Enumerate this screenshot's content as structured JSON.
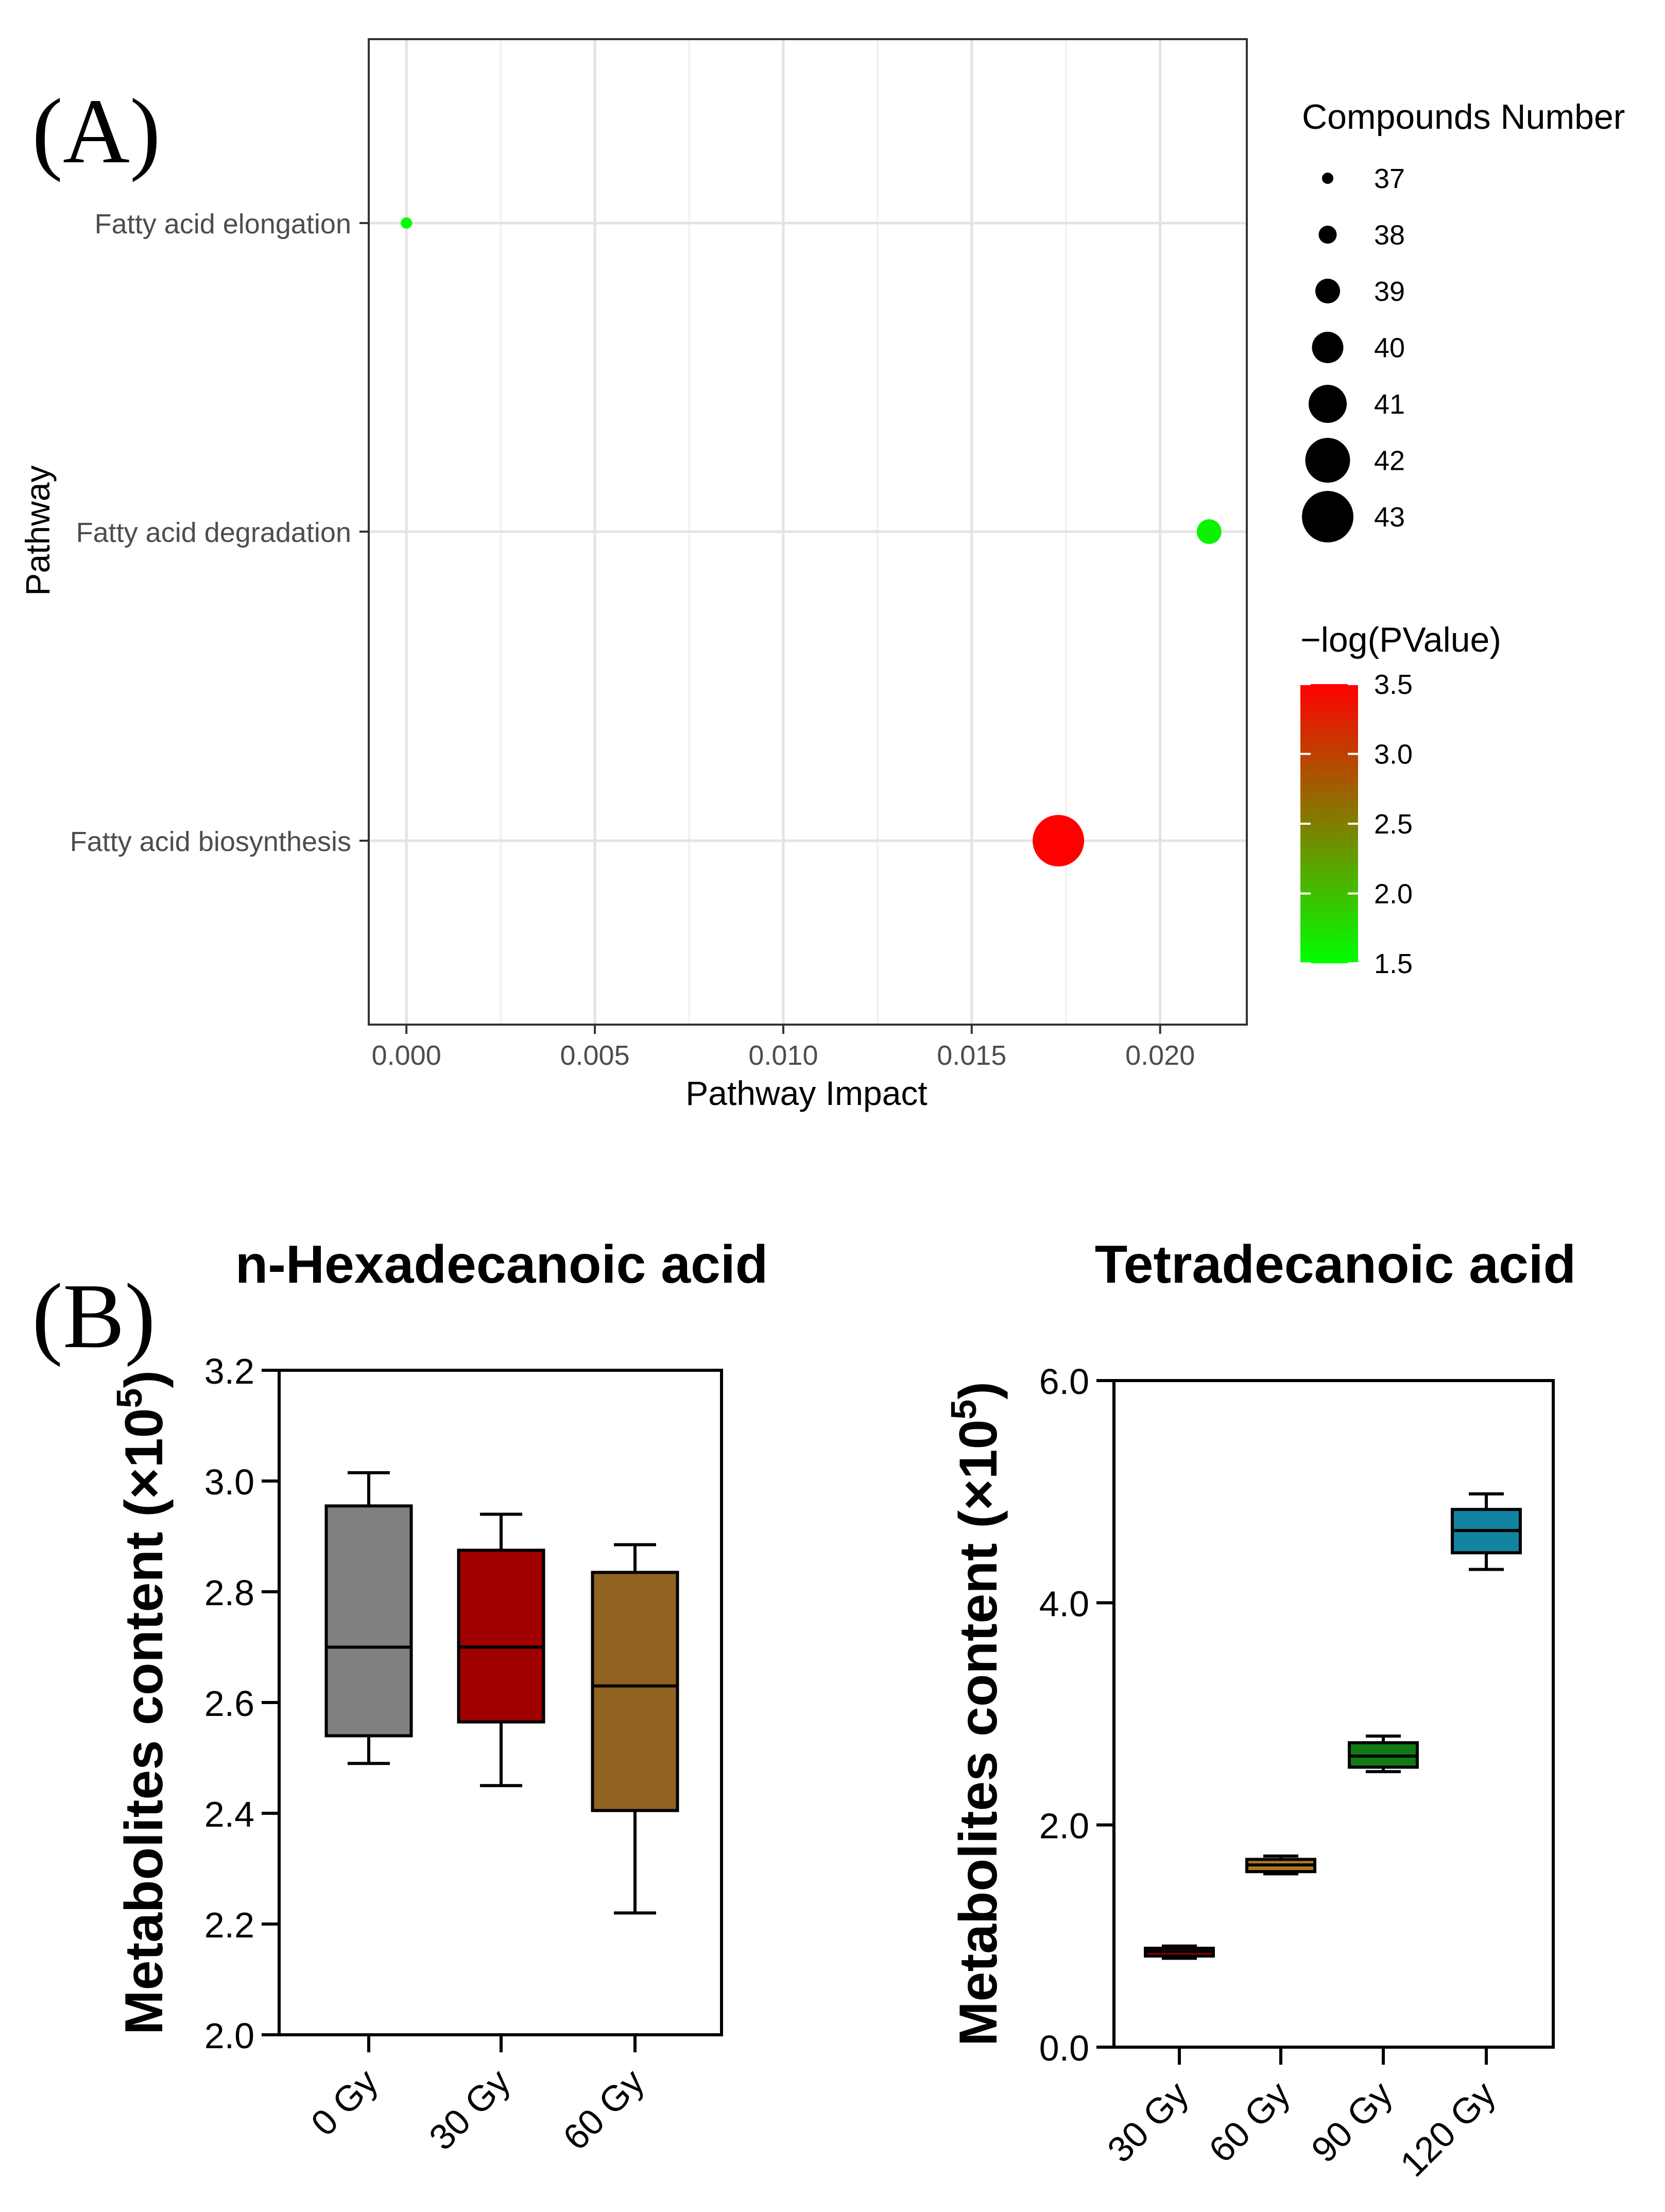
{
  "panels": {
    "a_label": "(A)",
    "b_label": "(B)"
  },
  "chart_data": [
    {
      "type": "scatter",
      "title": "",
      "xlabel": "Pathway Impact",
      "ylabel": "Pathway",
      "xlim": [
        -0.001,
        0.0223
      ],
      "x_ticks": [
        0.0,
        0.005,
        0.01,
        0.015,
        0.02
      ],
      "x_tick_labels": [
        "0.000",
        "0.005",
        "0.010",
        "0.015",
        "0.020"
      ],
      "categories": [
        "Fatty acid elongation",
        "Fatty acid degradation",
        "Fatty acid biosynthesis"
      ],
      "points": [
        {
          "pathway": "Fatty acid elongation",
          "impact": 0.0,
          "compounds": 37,
          "neg_log_p": 1.5
        },
        {
          "pathway": "Fatty acid degradation",
          "impact": 0.0213,
          "compounds": 39,
          "neg_log_p": 1.6
        },
        {
          "pathway": "Fatty acid biosynthesis",
          "impact": 0.0173,
          "compounds": 43,
          "neg_log_p": 3.5
        }
      ],
      "size_legend": {
        "title": "Compounds Number",
        "values": [
          37,
          38,
          39,
          40,
          41,
          42,
          43
        ],
        "labels": [
          "37",
          "38",
          "39",
          "40",
          "41",
          "42",
          "43"
        ]
      },
      "color_legend": {
        "title": "−log(PValue)",
        "range": [
          1.5,
          3.5
        ],
        "ticks": [
          3.5,
          3.0,
          2.5,
          2.0,
          1.5
        ],
        "tick_labels": [
          "3.5",
          "3.0",
          "2.5",
          "2.0",
          "1.5"
        ],
        "low_color": "#00ff00",
        "high_color": "#ff0000"
      },
      "grid": true,
      "legend_position": "right"
    },
    {
      "type": "box",
      "title": "n-Hexadecanoic acid",
      "ylabel": "Metabolites content (×10",
      "ylabel_sup": "5",
      "ylabel_close": ")",
      "ylim": [
        2.0,
        3.2
      ],
      "y_ticks": [
        2.0,
        2.2,
        2.4,
        2.6,
        2.8,
        3.0,
        3.2
      ],
      "y_tick_labels": [
        "2.0",
        "2.2",
        "2.4",
        "2.6",
        "2.8",
        "3.0",
        "3.2"
      ],
      "categories": [
        "0 Gy",
        "30 Gy",
        "60 Gy"
      ],
      "boxes": [
        {
          "min": 2.49,
          "q1": 2.54,
          "median": 2.7,
          "q3": 2.955,
          "max": 3.015,
          "color": "#808080"
        },
        {
          "min": 2.45,
          "q1": 2.565,
          "median": 2.7,
          "q3": 2.875,
          "max": 2.94,
          "color": "#a00000"
        },
        {
          "min": 2.22,
          "q1": 2.405,
          "median": 2.63,
          "q3": 2.835,
          "max": 2.885,
          "color": "#926220"
        }
      ]
    },
    {
      "type": "box",
      "title": "Tetradecanoic acid",
      "ylabel": "Metabolites content (×10",
      "ylabel_sup": "5",
      "ylabel_close": ")",
      "ylim": [
        0.0,
        6.0
      ],
      "y_ticks": [
        0.0,
        2.0,
        4.0,
        6.0
      ],
      "y_tick_labels": [
        "0.0",
        "2.0",
        "4.0",
        "6.0"
      ],
      "categories": [
        "30 Gy",
        "60 Gy",
        "90 Gy",
        "120 Gy"
      ],
      "boxes": [
        {
          "min": 0.8,
          "q1": 0.82,
          "median": 0.86,
          "q3": 0.89,
          "max": 0.91,
          "color": "#a00000"
        },
        {
          "min": 1.56,
          "q1": 1.58,
          "median": 1.64,
          "q3": 1.69,
          "max": 1.72,
          "color": "#b07a22"
        },
        {
          "min": 2.48,
          "q1": 2.52,
          "median": 2.62,
          "q3": 2.74,
          "max": 2.8,
          "color": "#127a12"
        },
        {
          "min": 4.3,
          "q1": 4.45,
          "median": 4.65,
          "q3": 4.84,
          "max": 4.98,
          "color": "#1283a0"
        }
      ]
    }
  ]
}
